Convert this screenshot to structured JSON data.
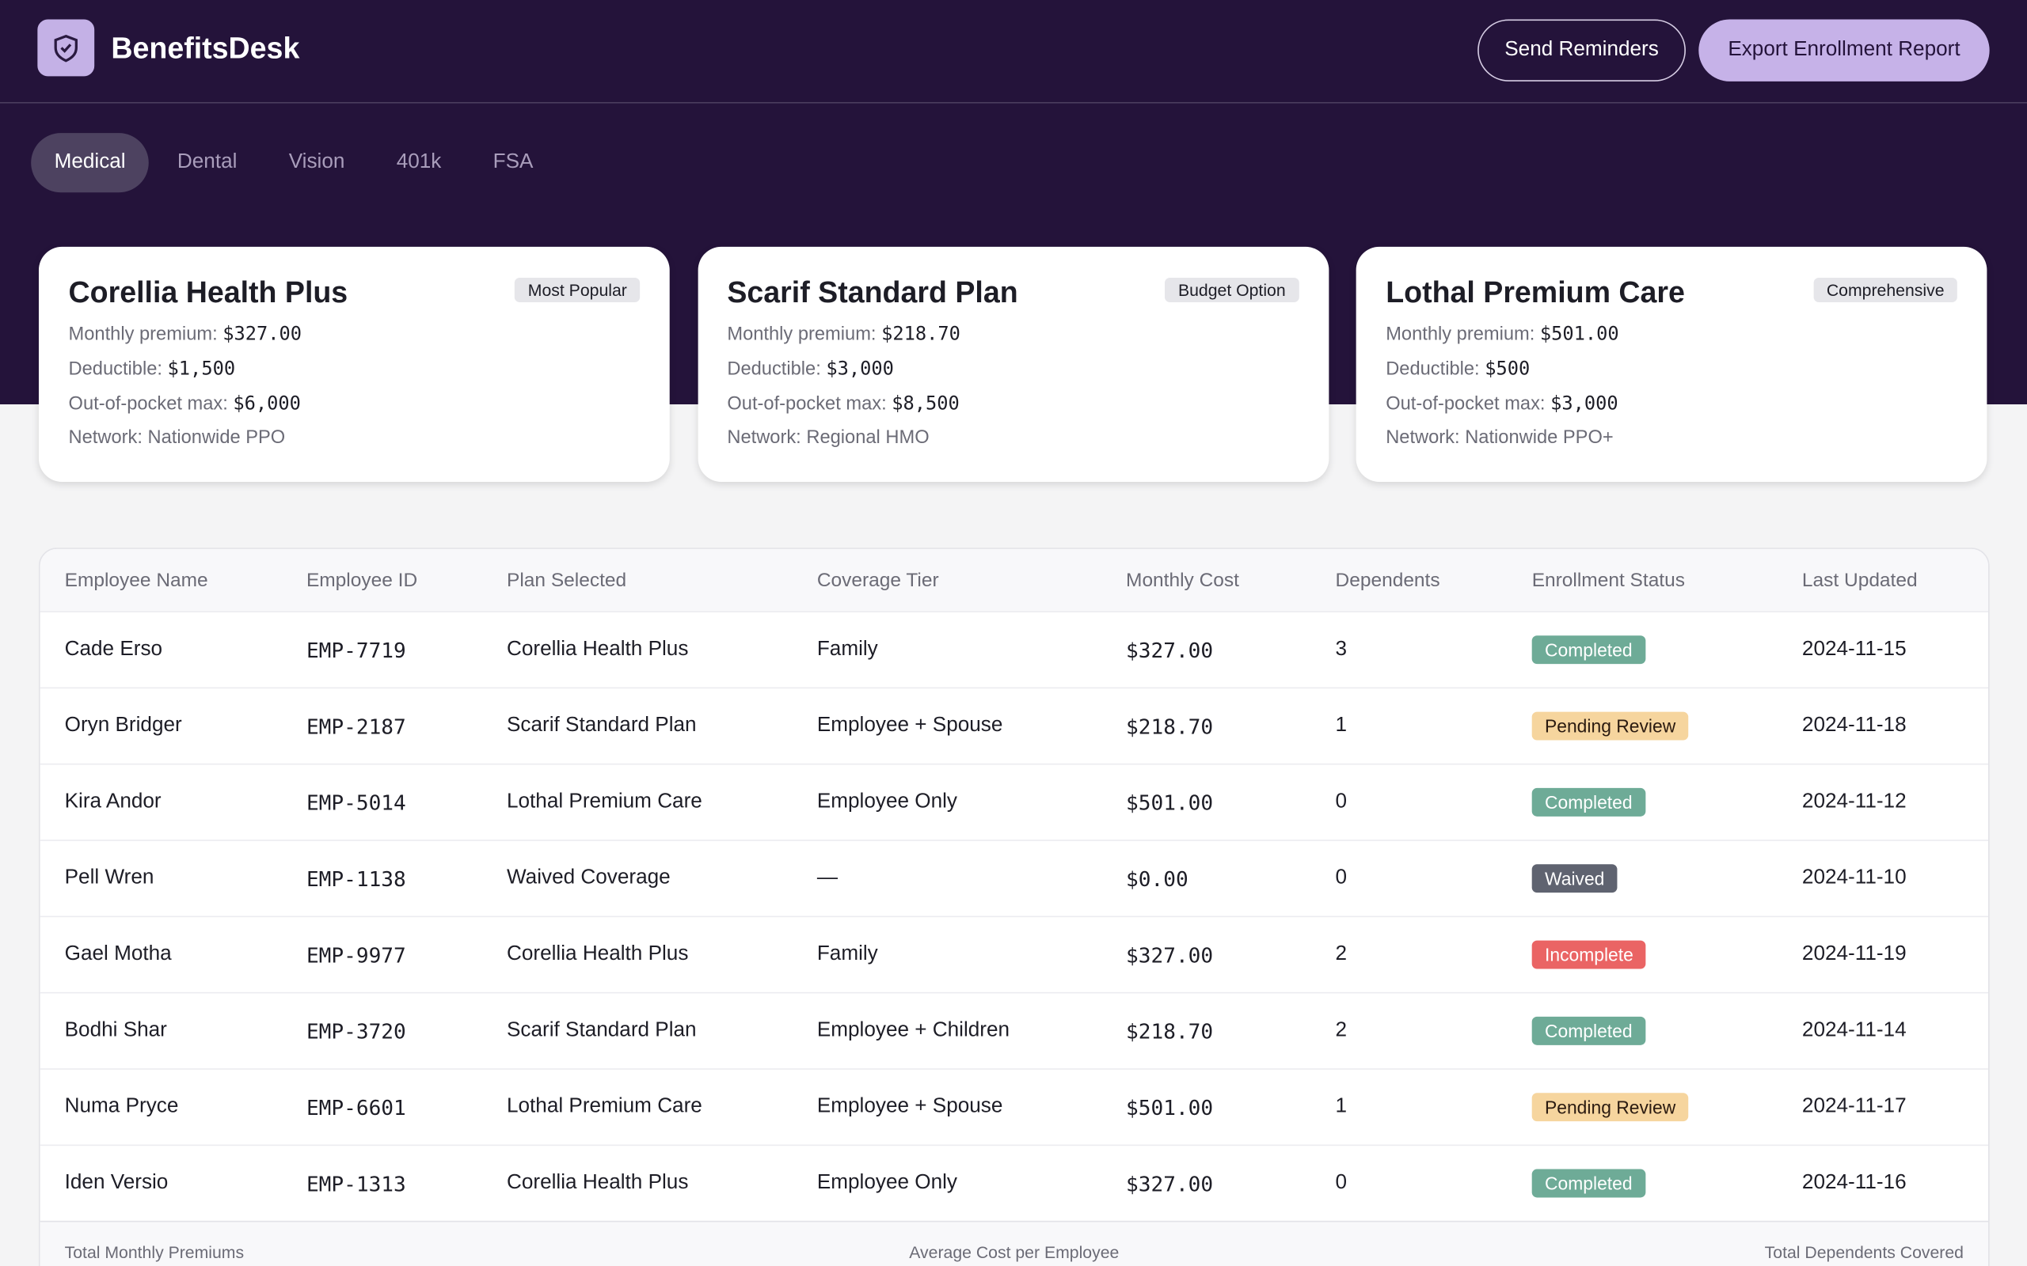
{
  "header": {
    "brand": "BenefitsDesk",
    "actions": [
      "Send Reminders",
      "Export Enrollment Report"
    ]
  },
  "tabs": {
    "items": [
      "Medical",
      "Dental",
      "Vision",
      "401k",
      "FSA"
    ],
    "active": 0
  },
  "plan_fields": [
    "Monthly premium:",
    "Deductible:",
    "Out-of-pocket max:",
    "Network:"
  ],
  "plans": [
    {
      "name": "Corellia Health Plus",
      "badge": "Most Popular",
      "values": [
        "$327.00",
        "$1,500",
        "$6,000",
        "Nationwide PPO"
      ]
    },
    {
      "name": "Scarif Standard Plan",
      "badge": "Budget Option",
      "values": [
        "$218.70",
        "$3,000",
        "$8,500",
        "Regional HMO"
      ]
    },
    {
      "name": "Lothal Premium Care",
      "badge": "Comprehensive",
      "values": [
        "$501.00",
        "$500",
        "$3,000",
        "Nationwide PPO+"
      ]
    }
  ],
  "table": {
    "columns": [
      "Employee Name",
      "Employee ID",
      "Plan Selected",
      "Coverage Tier",
      "Monthly Cost",
      "Dependents",
      "Enrollment Status",
      "Last Updated"
    ],
    "rows": [
      [
        "Cade Erso",
        "EMP-7719",
        "Corellia Health Plus",
        "Family",
        "$327.00",
        3,
        "Completed",
        "2024-11-15"
      ],
      [
        "Oryn Bridger",
        "EMP-2187",
        "Scarif Standard Plan",
        "Employee + Spouse",
        "$218.70",
        1,
        "Pending Review",
        "2024-11-18"
      ],
      [
        "Kira Andor",
        "EMP-5014",
        "Lothal Premium Care",
        "Employee Only",
        "$501.00",
        0,
        "Completed",
        "2024-11-12"
      ],
      [
        "Pell Wren",
        "EMP-1138",
        "Waived Coverage",
        "—",
        "$0.00",
        0,
        "Waived",
        "2024-11-10"
      ],
      [
        "Gael Motha",
        "EMP-9977",
        "Corellia Health Plus",
        "Family",
        "$327.00",
        2,
        "Incomplete",
        "2024-11-19"
      ],
      [
        "Bodhi Shar",
        "EMP-3720",
        "Scarif Standard Plan",
        "Employee + Children",
        "$218.70",
        2,
        "Completed",
        "2024-11-14"
      ],
      [
        "Numa Pryce",
        "EMP-6601",
        "Lothal Premium Care",
        "Employee + Spouse",
        "$501.00",
        1,
        "Pending Review",
        "2024-11-17"
      ],
      [
        "Iden Versio",
        "EMP-1313",
        "Corellia Health Plus",
        "Employee Only",
        "$327.00",
        0,
        "Completed",
        "2024-11-16"
      ]
    ],
    "status_styles": {
      "Completed": {
        "bg": "#6eab97",
        "fg": "#ffffff"
      },
      "Pending Review": {
        "bg": "#f6d59e",
        "fg": "#2a1a10"
      },
      "Waived": {
        "bg": "#5f6370",
        "fg": "#ffffff"
      },
      "Incomplete": {
        "bg": "#ea6464",
        "fg": "#ffffff"
      }
    }
  },
  "footer": [
    "Total Monthly Premiums",
    "Average Cost per Employee",
    "Total Dependents Covered"
  ]
}
